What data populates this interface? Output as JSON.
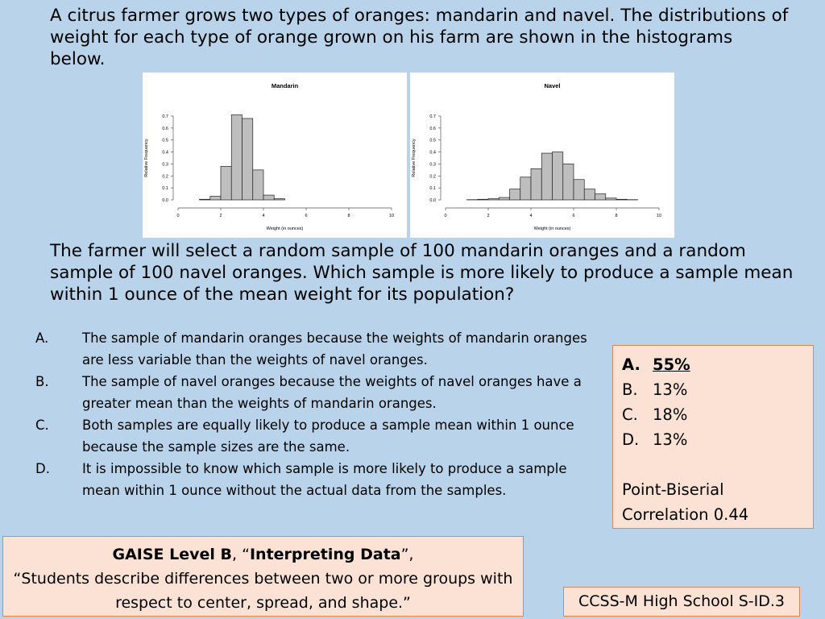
{
  "intro_text": "A citrus farmer grows two types of oranges:  mandarin and navel.  The distributions of weight for each type of orange grown on his farm are shown in the histograms below.",
  "question_text": "The farmer will select a random sample of 100 mandarin oranges and a random sample of 100 navel oranges. Which sample is more likely to produce a sample mean within 1 ounce of the mean weight for its population?",
  "options": [
    {
      "letter": "A.",
      "text": "The sample of mandarin oranges because the weights of mandarin oranges are less variable than the weights of navel oranges."
    },
    {
      "letter": "B.",
      "text": "The sample of navel oranges because the weights of navel oranges have a greater mean than the weights of mandarin oranges."
    },
    {
      "letter": "C.",
      "text": "Both samples are equally likely to produce a sample mean within 1 ounce because the sample sizes are the same."
    },
    {
      "letter": "D.",
      "text": "It is impossible to know which sample is more likely to produce a sample mean within 1 ounce without the actual data from the samples."
    }
  ],
  "answer_stats": {
    "rows": [
      {
        "letter": "A.",
        "value": "55%",
        "correct": true
      },
      {
        "letter": "B.",
        "value": "13%",
        "correct": false
      },
      {
        "letter": "C.",
        "value": "18%",
        "correct": false
      },
      {
        "letter": "D.",
        "value": "13%",
        "correct": false
      }
    ],
    "correlation_line1": "Point-Biserial",
    "correlation_line2": "Correlation 0.44"
  },
  "gaise": {
    "level": "GAISE Level B",
    "sep": ", “",
    "topic": "Interpreting Data",
    "close": "”,",
    "quote": "“Students describe differences between two or more groups with respect to center, spread, and shape.”"
  },
  "ccss": "CCSS-M High School S-ID.3",
  "colors": {
    "background": "#b9d3ea",
    "box_fill": "#fbe2d5",
    "box_border": "#d6875e",
    "bar_fill": "#bebebe"
  },
  "chart_data": [
    {
      "type": "bar",
      "title": "Mandarin",
      "xlabel": "Weight (in ounces)",
      "ylabel": "Relative Frequency",
      "xlim": [
        0,
        10
      ],
      "ylim": [
        0,
        0.7
      ],
      "xticks": [
        0,
        2,
        4,
        6,
        8,
        10
      ],
      "yticks": [
        0.0,
        0.1,
        0.2,
        0.3,
        0.4,
        0.5,
        0.6,
        0.7
      ],
      "bin_width": 0.5,
      "bins_start": [
        1.0,
        1.5,
        2.0,
        2.5,
        3.0,
        3.5,
        4.0,
        4.5
      ],
      "values": [
        0.005,
        0.03,
        0.28,
        0.71,
        0.68,
        0.25,
        0.04,
        0.01
      ]
    },
    {
      "type": "bar",
      "title": "Navel",
      "xlabel": "Weight (in ounces)",
      "ylabel": "Relative Frequency",
      "xlim": [
        0,
        10
      ],
      "ylim": [
        0,
        0.7
      ],
      "xticks": [
        0,
        2,
        4,
        6,
        8,
        10
      ],
      "yticks": [
        0.0,
        0.1,
        0.2,
        0.3,
        0.4,
        0.5,
        0.6,
        0.7
      ],
      "bin_width": 0.5,
      "bins_start": [
        1.0,
        1.5,
        2.0,
        2.5,
        3.0,
        3.5,
        4.0,
        4.5,
        5.0,
        5.5,
        6.0,
        6.5,
        7.0,
        7.5,
        8.0,
        8.5
      ],
      "values": [
        0.002,
        0.005,
        0.01,
        0.02,
        0.09,
        0.19,
        0.26,
        0.39,
        0.4,
        0.3,
        0.17,
        0.09,
        0.05,
        0.015,
        0.005,
        0.002
      ]
    }
  ]
}
